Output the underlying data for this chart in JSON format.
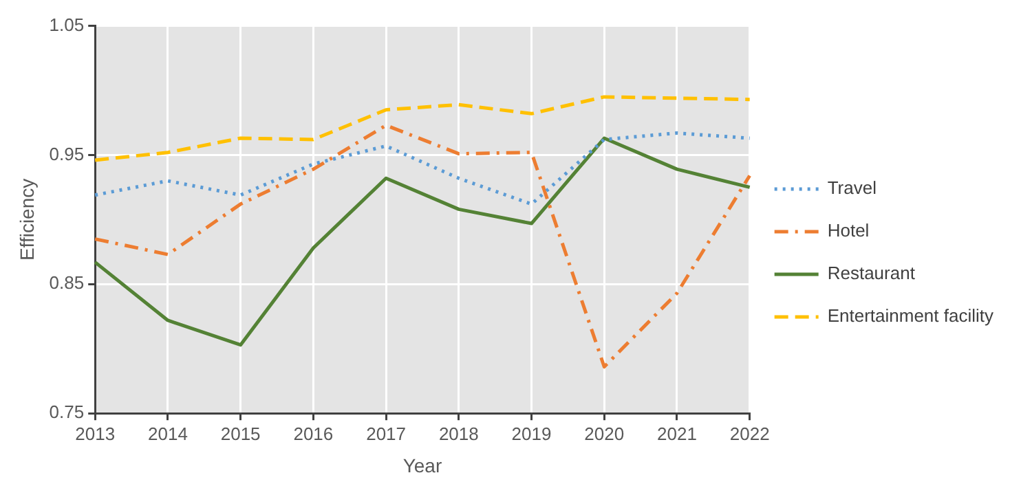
{
  "chart_data": {
    "type": "line",
    "xlabel": "Year",
    "ylabel": "Efficiency",
    "categories": [
      "2013",
      "2014",
      "2015",
      "2016",
      "2017",
      "2018",
      "2019",
      "2020",
      "2021",
      "2022"
    ],
    "series": [
      {
        "name": "Travel",
        "color": "#5b9bd5",
        "line_style": "dotted",
        "values": [
          0.919,
          0.93,
          0.919,
          0.943,
          0.957,
          0.932,
          0.912,
          0.962,
          0.967,
          0.963
        ]
      },
      {
        "name": "Hotel",
        "color": "#ed7d31",
        "line_style": "dashdot",
        "values": [
          0.885,
          0.873,
          0.912,
          0.939,
          0.973,
          0.951,
          0.952,
          0.786,
          0.843,
          0.934
        ]
      },
      {
        "name": "Restaurant",
        "color": "#548235",
        "line_style": "solid",
        "values": [
          0.867,
          0.822,
          0.803,
          0.878,
          0.932,
          0.908,
          0.897,
          0.963,
          0.939,
          0.925
        ]
      },
      {
        "name": "Entertainment facility",
        "color": "#ffc000",
        "line_style": "dashed",
        "values": [
          0.946,
          0.952,
          0.963,
          0.962,
          0.985,
          0.989,
          0.982,
          0.995,
          0.994,
          0.993
        ]
      }
    ],
    "ylim": [
      0.75,
      1.05
    ],
    "yticks": [
      0.75,
      0.85,
      0.95,
      1.05
    ],
    "grid": true,
    "legend": "right",
    "marker": "none"
  }
}
